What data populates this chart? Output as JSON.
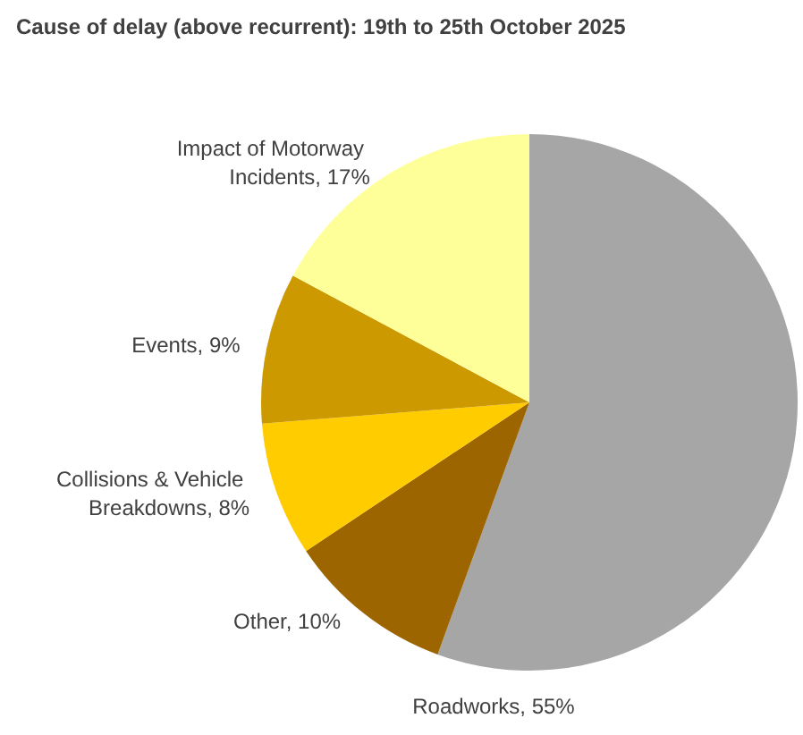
{
  "chart_data": {
    "type": "pie",
    "title": "Cause of delay (above recurrent): 19th to 25th October 2025",
    "categories": [
      "Roadworks",
      "Other",
      "Collisions & Vehicle Breakdowns",
      "Events",
      "Impact of Motorway Incidents"
    ],
    "values": [
      55,
      10,
      8,
      9,
      17
    ],
    "value_labels": [
      "55%",
      "10%",
      "8%",
      "9%",
      "17%"
    ],
    "colors": [
      "#a6a6a6",
      "#9c6500",
      "#ffcc00",
      "#cc9900",
      "#ffff99"
    ],
    "legend": false
  }
}
